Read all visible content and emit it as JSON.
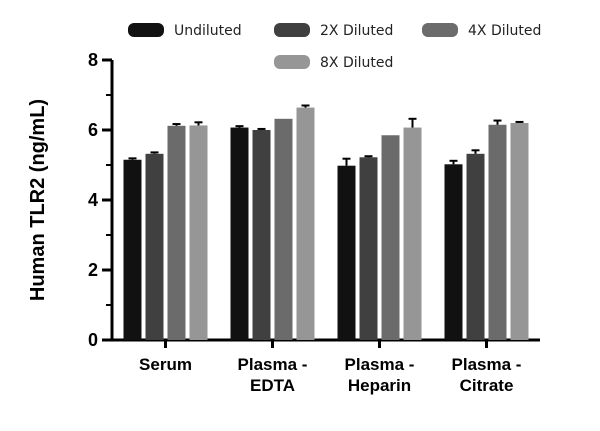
{
  "chart_data": {
    "type": "bar",
    "ylabel": "Human TLR2 (ng/mL)",
    "xlabel": "",
    "ylim": [
      0,
      8
    ],
    "yticks": [
      0,
      2,
      4,
      6,
      8
    ],
    "categories": [
      [
        "Serum"
      ],
      [
        "Plasma -",
        "EDTA"
      ],
      [
        "Plasma -",
        "Heparin"
      ],
      [
        "Plasma -",
        "Citrate"
      ]
    ],
    "series": [
      {
        "name": "Undiluted",
        "color": "#111111",
        "values": [
          5.15,
          6.07,
          4.98,
          5.02
        ],
        "errors": [
          0.04,
          0.04,
          0.2,
          0.1
        ]
      },
      {
        "name": "2X Diluted",
        "color": "#404040",
        "values": [
          5.32,
          6.0,
          5.22,
          5.32
        ],
        "errors": [
          0.04,
          0.03,
          0.03,
          0.1
        ]
      },
      {
        "name": "4X Diluted",
        "color": "#6b6b6b",
        "values": [
          6.12,
          6.32,
          5.85,
          6.15
        ],
        "errors": [
          0.05,
          0.0,
          0.0,
          0.12
        ]
      },
      {
        "name": "8X Diluted",
        "color": "#969696",
        "values": [
          6.13,
          6.64,
          6.07,
          6.2
        ],
        "errors": [
          0.09,
          0.06,
          0.25,
          0.03
        ]
      }
    ],
    "legend_position": "top",
    "grid": false
  }
}
